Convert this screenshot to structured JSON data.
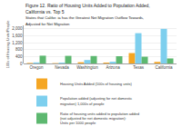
{
  "chart_data": {
    "type": "bar",
    "title": "Figure 12. Ratio of Housing Units Added to Population Added, California vs. Top 5",
    "subtitle": "States that Califor. ia has the Greatest Net Migration Outflow Towards,\nAdjusted for Net Migration",
    "categories": [
      "Oregon",
      "Nevada",
      "Washington",
      "Arizona",
      "Texas",
      "California"
    ],
    "series": [
      {
        "name": "Housing Units Added (100s of housing units)",
        "color": "#f5a623",
        "values": [
          30,
          20,
          70,
          50,
          600,
          90
        ]
      },
      {
        "name": "Population added (adjusting for net domestic\nmigration) 1,000s of people",
        "color": "#7dcfee",
        "values": [
          60,
          50,
          200,
          100,
          1750,
          2000
        ]
      },
      {
        "name": "Ratio of housing units added to population added\n(not adjusted for net domestic migration):\nUnits per 1000 people",
        "color": "#5db870",
        "values": [
          450,
          440,
          430,
          420,
          390,
          290
        ]
      }
    ],
    "ylabel": "100s of Housing Units/People",
    "ylim": [
      0,
      2200
    ],
    "yticks": [
      0,
      400,
      800,
      {
        "value": 1200,
        "label": "1,200"
      },
      {
        "value": 1600,
        "label": "1,600"
      },
      {
        "value": 2000,
        "label": "2,000"
      }
    ],
    "grid": true,
    "legend": "bottom"
  }
}
